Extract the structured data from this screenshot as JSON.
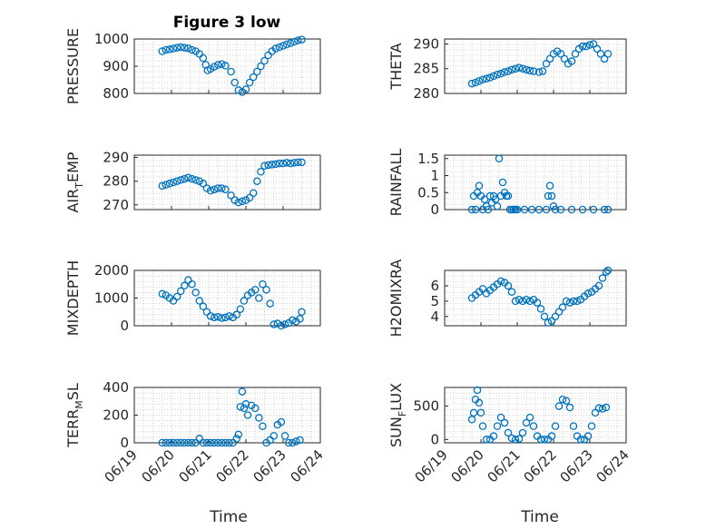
{
  "title": "Figure 3 low",
  "marker_color": "#0072BD",
  "chart_data": [
    {
      "type": "scatter",
      "ylabel": "PRESSURE",
      "yticks": [
        800,
        900,
        1000
      ],
      "ylim": [
        800,
        1000
      ],
      "x_at_day": true,
      "x": [
        19.75,
        19.85,
        19.95,
        20.05,
        20.15,
        20.25,
        20.35,
        20.45,
        20.55,
        20.65,
        20.75,
        20.85,
        20.92,
        20.97,
        21.05,
        21.15,
        21.25,
        21.35,
        21.45,
        21.6,
        21.7,
        21.8,
        21.9,
        22.0,
        22.1,
        22.2,
        22.3,
        22.4,
        22.5,
        22.6,
        22.7,
        22.8,
        22.9,
        23.0,
        23.1,
        23.2,
        23.3,
        23.4,
        23.5
      ],
      "y": [
        955,
        960,
        962,
        965,
        968,
        970,
        968,
        966,
        960,
        955,
        945,
        930,
        905,
        885,
        890,
        898,
        905,
        908,
        902,
        880,
        840,
        812,
        805,
        815,
        840,
        860,
        880,
        900,
        920,
        940,
        955,
        965,
        970,
        975,
        980,
        985,
        990,
        995,
        998
      ],
      "xlim_days": [
        19,
        24
      ]
    },
    {
      "type": "scatter",
      "ylabel": "THETA",
      "yticks": [
        280,
        285,
        290
      ],
      "ylim": [
        280,
        291
      ],
      "x": [
        19.75,
        19.85,
        19.95,
        20.05,
        20.15,
        20.25,
        20.35,
        20.45,
        20.55,
        20.65,
        20.75,
        20.85,
        20.95,
        21.05,
        21.15,
        21.25,
        21.35,
        21.45,
        21.6,
        21.7,
        21.8,
        21.9,
        22.0,
        22.1,
        22.2,
        22.3,
        22.4,
        22.5,
        22.6,
        22.7,
        22.8,
        22.9,
        23.0,
        23.1,
        23.2,
        23.3,
        23.4,
        23.5
      ],
      "y": [
        282,
        282.2,
        282.5,
        282.8,
        283,
        283.2,
        283.5,
        283.8,
        284,
        284.3,
        284.5,
        284.8,
        285,
        285.2,
        285,
        284.8,
        284.6,
        284.5,
        284.3,
        284.5,
        286,
        287,
        288,
        288.5,
        288,
        287,
        286,
        286.5,
        288,
        289,
        289.5,
        289.5,
        289.8,
        290,
        289,
        288,
        287,
        288
      ],
      "xlim_days": [
        19,
        24
      ]
    },
    {
      "type": "scatter",
      "ylabel": "AIR_TEMP",
      "yticks": [
        270,
        280,
        290
      ],
      "ylim": [
        268,
        291
      ],
      "x": [
        19.75,
        19.85,
        19.95,
        20.05,
        20.15,
        20.25,
        20.35,
        20.45,
        20.55,
        20.65,
        20.75,
        20.85,
        20.95,
        21.05,
        21.15,
        21.25,
        21.35,
        21.45,
        21.6,
        21.7,
        21.8,
        21.9,
        22.0,
        22.1,
        22.2,
        22.3,
        22.4,
        22.5,
        22.6,
        22.7,
        22.8,
        22.9,
        23.0,
        23.1,
        23.2,
        23.3,
        23.4,
        23.5
      ],
      "y": [
        278,
        278.5,
        279,
        279.5,
        280,
        280.5,
        281,
        281.5,
        281,
        280.5,
        280,
        279,
        277,
        276,
        276.5,
        277,
        277,
        276.5,
        274,
        272,
        271,
        271.5,
        272,
        273,
        275,
        280,
        284,
        286.5,
        286.8,
        287,
        287.2,
        287.5,
        287.5,
        287.8,
        287.5,
        287.8,
        288,
        288
      ],
      "xlim_days": [
        19,
        24
      ]
    },
    {
      "type": "scatter",
      "ylabel": "RAINFALL",
      "yticks": [
        0,
        0.5,
        1,
        1.5
      ],
      "ylim": [
        0,
        1.6
      ],
      "x": [
        19.75,
        19.8,
        19.85,
        19.9,
        19.95,
        20.0,
        20.05,
        20.1,
        20.15,
        20.2,
        20.25,
        20.3,
        20.35,
        20.4,
        20.45,
        20.5,
        20.55,
        20.6,
        20.65,
        20.7,
        20.75,
        20.8,
        20.85,
        20.9,
        20.95,
        21.0,
        21.2,
        21.4,
        21.6,
        21.8,
        21.85,
        21.9,
        21.95,
        22.0,
        22.05,
        22.2,
        22.5,
        22.8,
        23.1,
        23.4,
        23.5
      ],
      "y": [
        0,
        0.4,
        0,
        0.5,
        0.7,
        0.4,
        0,
        0.3,
        0.1,
        0,
        0.4,
        0.2,
        0.4,
        0.3,
        0.1,
        1.5,
        0.4,
        0.8,
        0.5,
        0.4,
        0.4,
        0,
        0,
        0,
        0,
        0,
        0,
        0,
        0,
        0,
        0.4,
        0.7,
        0.4,
        0.1,
        0,
        0,
        0,
        0,
        0,
        0,
        0
      ],
      "xlim_days": [
        19,
        24
      ]
    },
    {
      "type": "scatter",
      "ylabel": "MIXDEPTH",
      "yticks": [
        0,
        1000,
        2000
      ],
      "ylim": [
        0,
        2000
      ],
      "x": [
        19.75,
        19.85,
        19.95,
        20.05,
        20.15,
        20.25,
        20.35,
        20.45,
        20.55,
        20.65,
        20.75,
        20.85,
        20.95,
        21.05,
        21.15,
        21.25,
        21.35,
        21.45,
        21.55,
        21.65,
        21.75,
        21.85,
        21.95,
        22.05,
        22.15,
        22.25,
        22.35,
        22.45,
        22.55,
        22.65,
        22.75,
        22.85,
        22.95,
        23.05,
        23.15,
        23.25,
        23.35,
        23.45,
        23.5
      ],
      "y": [
        1150,
        1100,
        1000,
        900,
        1050,
        1250,
        1450,
        1650,
        1500,
        1200,
        900,
        700,
        500,
        350,
        300,
        320,
        280,
        300,
        350,
        300,
        400,
        600,
        900,
        1100,
        1200,
        1300,
        1000,
        1500,
        1300,
        800,
        50,
        80,
        0,
        50,
        100,
        200,
        150,
        250,
        500
      ],
      "xlim_days": [
        19,
        24
      ]
    },
    {
      "type": "scatter",
      "ylabel": "H2OMIXRA",
      "yticks": [
        4,
        5,
        6
      ],
      "ylim": [
        3.4,
        7
      ],
      "x": [
        19.75,
        19.85,
        19.95,
        20.05,
        20.15,
        20.25,
        20.35,
        20.45,
        20.55,
        20.65,
        20.75,
        20.85,
        20.95,
        21.05,
        21.15,
        21.25,
        21.35,
        21.45,
        21.55,
        21.65,
        21.75,
        21.85,
        21.95,
        22.05,
        22.15,
        22.25,
        22.35,
        22.45,
        22.55,
        22.65,
        22.75,
        22.85,
        22.95,
        23.05,
        23.15,
        23.25,
        23.35,
        23.45,
        23.5
      ],
      "y": [
        5.2,
        5.4,
        5.6,
        5.8,
        5.5,
        5.7,
        5.9,
        6.1,
        6.3,
        6.2,
        6.0,
        5.6,
        5.0,
        5.1,
        5.0,
        5.1,
        5.0,
        5.1,
        4.9,
        4.5,
        4.0,
        3.6,
        3.7,
        4.0,
        4.3,
        4.6,
        5.0,
        4.9,
        5.0,
        5.0,
        5.1,
        5.3,
        5.5,
        5.6,
        5.8,
        6.0,
        6.5,
        6.9,
        7.0
      ],
      "xlim_days": [
        19,
        24
      ]
    },
    {
      "type": "scatter",
      "ylabel": "TERR_MSL",
      "yticks": [
        0,
        200,
        400
      ],
      "ylim": [
        0,
        400
      ],
      "x": [
        19.75,
        19.85,
        19.95,
        20.05,
        20.15,
        20.25,
        20.35,
        20.45,
        20.55,
        20.65,
        20.75,
        20.85,
        20.95,
        21.05,
        21.15,
        21.25,
        21.35,
        21.45,
        21.55,
        21.65,
        21.75,
        21.8,
        21.85,
        21.9,
        21.95,
        22.0,
        22.05,
        22.15,
        22.25,
        22.35,
        22.45,
        22.55,
        22.65,
        22.75,
        22.85,
        22.95,
        23.05,
        23.15,
        23.25,
        23.35,
        23.45
      ],
      "y": [
        0,
        0,
        0,
        0,
        0,
        0,
        0,
        0,
        0,
        0,
        30,
        0,
        0,
        0,
        0,
        0,
        0,
        0,
        0,
        0,
        30,
        60,
        260,
        370,
        250,
        280,
        200,
        270,
        250,
        180,
        120,
        0,
        20,
        50,
        130,
        150,
        50,
        0,
        0,
        10,
        20
      ],
      "xlim_days": [
        19,
        24
      ]
    },
    {
      "type": "scatter",
      "ylabel": "SUN_FLUX",
      "yticks": [
        0,
        500
      ],
      "ylim": [
        -50,
        780
      ],
      "x": [
        19.75,
        19.8,
        19.85,
        19.9,
        19.95,
        20.0,
        20.05,
        20.15,
        20.25,
        20.35,
        20.45,
        20.55,
        20.65,
        20.75,
        20.85,
        20.95,
        21.05,
        21.15,
        21.25,
        21.35,
        21.45,
        21.55,
        21.65,
        21.75,
        21.85,
        21.95,
        22.05,
        22.15,
        22.25,
        22.35,
        22.45,
        22.55,
        22.65,
        22.75,
        22.85,
        22.95,
        23.05,
        23.15,
        23.25,
        23.35,
        23.45
      ],
      "y": [
        300,
        400,
        600,
        740,
        550,
        400,
        200,
        0,
        0,
        50,
        200,
        330,
        250,
        100,
        20,
        0,
        10,
        100,
        250,
        330,
        200,
        50,
        0,
        0,
        0,
        50,
        200,
        500,
        600,
        580,
        480,
        200,
        50,
        0,
        0,
        50,
        200,
        400,
        470,
        460,
        480
      ],
      "xlim_days": [
        19,
        24
      ]
    }
  ],
  "xticks": [
    "06/19",
    "06/20",
    "06/21",
    "06/22",
    "06/23",
    "06/24"
  ],
  "xlabel": "Time"
}
